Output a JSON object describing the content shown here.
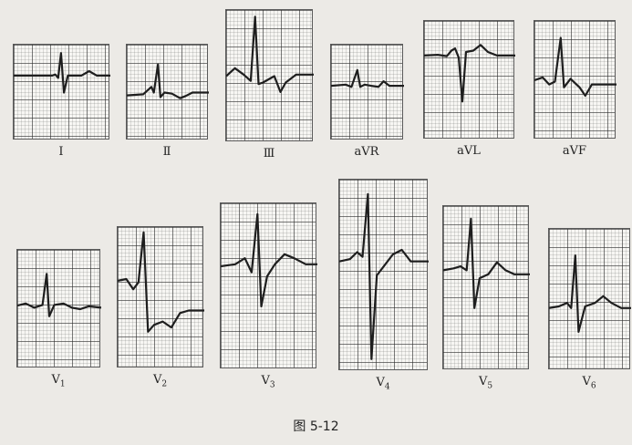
{
  "figure": {
    "caption": "图 5-12"
  },
  "leads": [
    {
      "id": "I",
      "label": "I",
      "sub": "",
      "trace": [
        [
          0,
          50
        ],
        [
          40,
          50
        ],
        [
          43,
          48
        ],
        [
          46,
          54
        ],
        [
          49,
          10
        ],
        [
          52,
          80
        ],
        [
          56,
          50
        ],
        [
          70,
          50
        ],
        [
          78,
          42
        ],
        [
          86,
          50
        ],
        [
          100,
          50
        ]
      ]
    },
    {
      "id": "II",
      "label": "Ⅱ",
      "sub": "",
      "trace": [
        [
          0,
          85
        ],
        [
          20,
          83
        ],
        [
          30,
          70
        ],
        [
          33,
          80
        ],
        [
          38,
          30
        ],
        [
          41,
          88
        ],
        [
          46,
          80
        ],
        [
          55,
          82
        ],
        [
          65,
          90
        ],
        [
          72,
          86
        ],
        [
          80,
          80
        ],
        [
          100,
          80
        ]
      ]
    },
    {
      "id": "III",
      "label": "Ⅲ",
      "sub": "",
      "trace": [
        [
          0,
          80
        ],
        [
          10,
          70
        ],
        [
          20,
          78
        ],
        [
          28,
          86
        ],
        [
          33,
          5
        ],
        [
          37,
          90
        ],
        [
          42,
          88
        ],
        [
          55,
          80
        ],
        [
          62,
          100
        ],
        [
          68,
          88
        ],
        [
          80,
          78
        ],
        [
          100,
          78
        ]
      ]
    },
    {
      "id": "aVR",
      "label": "aVR",
      "sub": "",
      "trace": [
        [
          0,
          68
        ],
        [
          20,
          66
        ],
        [
          28,
          70
        ],
        [
          36,
          40
        ],
        [
          40,
          70
        ],
        [
          46,
          66
        ],
        [
          55,
          68
        ],
        [
          65,
          70
        ],
        [
          72,
          60
        ],
        [
          80,
          68
        ],
        [
          100,
          68
        ]
      ]
    },
    {
      "id": "aVL",
      "label": "aVL",
      "sub": "",
      "trace": [
        [
          0,
          45
        ],
        [
          15,
          44
        ],
        [
          25,
          46
        ],
        [
          30,
          38
        ],
        [
          34,
          35
        ],
        [
          38,
          48
        ],
        [
          42,
          110
        ],
        [
          46,
          40
        ],
        [
          54,
          38
        ],
        [
          62,
          30
        ],
        [
          70,
          40
        ],
        [
          80,
          45
        ],
        [
          100,
          45
        ]
      ]
    },
    {
      "id": "aVF",
      "label": "aVF",
      "sub": "",
      "trace": [
        [
          0,
          80
        ],
        [
          10,
          76
        ],
        [
          18,
          86
        ],
        [
          25,
          82
        ],
        [
          32,
          20
        ],
        [
          36,
          90
        ],
        [
          44,
          78
        ],
        [
          55,
          90
        ],
        [
          62,
          102
        ],
        [
          70,
          86
        ],
        [
          100,
          86
        ]
      ]
    },
    {
      "id": "V1",
      "label": "V",
      "sub": "1",
      "trace": [
        [
          0,
          75
        ],
        [
          10,
          72
        ],
        [
          20,
          78
        ],
        [
          30,
          74
        ],
        [
          35,
          30
        ],
        [
          38,
          90
        ],
        [
          44,
          74
        ],
        [
          55,
          72
        ],
        [
          65,
          78
        ],
        [
          75,
          80
        ],
        [
          85,
          76
        ],
        [
          100,
          78
        ]
      ]
    },
    {
      "id": "V2",
      "label": "V",
      "sub": "2",
      "trace": [
        [
          0,
          60
        ],
        [
          10,
          58
        ],
        [
          18,
          70
        ],
        [
          24,
          62
        ],
        [
          30,
          3
        ],
        [
          35,
          120
        ],
        [
          42,
          112
        ],
        [
          52,
          108
        ],
        [
          62,
          115
        ],
        [
          72,
          98
        ],
        [
          82,
          95
        ],
        [
          100,
          95
        ]
      ]
    },
    {
      "id": "V3",
      "label": "V",
      "sub": "3",
      "trace": [
        [
          0,
          60
        ],
        [
          15,
          58
        ],
        [
          25,
          52
        ],
        [
          32,
          66
        ],
        [
          38,
          8
        ],
        [
          42,
          100
        ],
        [
          48,
          70
        ],
        [
          56,
          58
        ],
        [
          66,
          48
        ],
        [
          76,
          52
        ],
        [
          88,
          58
        ],
        [
          100,
          58
        ]
      ]
    },
    {
      "id": "V4",
      "label": "V",
      "sub": "4",
      "trace": [
        [
          0,
          68
        ],
        [
          12,
          66
        ],
        [
          20,
          60
        ],
        [
          26,
          64
        ],
        [
          32,
          10
        ],
        [
          36,
          152
        ],
        [
          42,
          80
        ],
        [
          50,
          72
        ],
        [
          60,
          62
        ],
        [
          70,
          58
        ],
        [
          80,
          68
        ],
        [
          100,
          68
        ]
      ]
    },
    {
      "id": "V5",
      "label": "V",
      "sub": "5",
      "trace": [
        [
          0,
          62
        ],
        [
          12,
          60
        ],
        [
          20,
          58
        ],
        [
          27,
          62
        ],
        [
          32,
          10
        ],
        [
          36,
          100
        ],
        [
          42,
          70
        ],
        [
          52,
          66
        ],
        [
          62,
          54
        ],
        [
          72,
          62
        ],
        [
          82,
          66
        ],
        [
          100,
          66
        ]
      ]
    },
    {
      "id": "V6",
      "label": "V",
      "sub": "6",
      "trace": [
        [
          0,
          90
        ],
        [
          12,
          88
        ],
        [
          22,
          84
        ],
        [
          27,
          90
        ],
        [
          32,
          28
        ],
        [
          36,
          118
        ],
        [
          44,
          88
        ],
        [
          56,
          84
        ],
        [
          66,
          76
        ],
        [
          76,
          84
        ],
        [
          88,
          90
        ],
        [
          100,
          90
        ]
      ]
    }
  ]
}
